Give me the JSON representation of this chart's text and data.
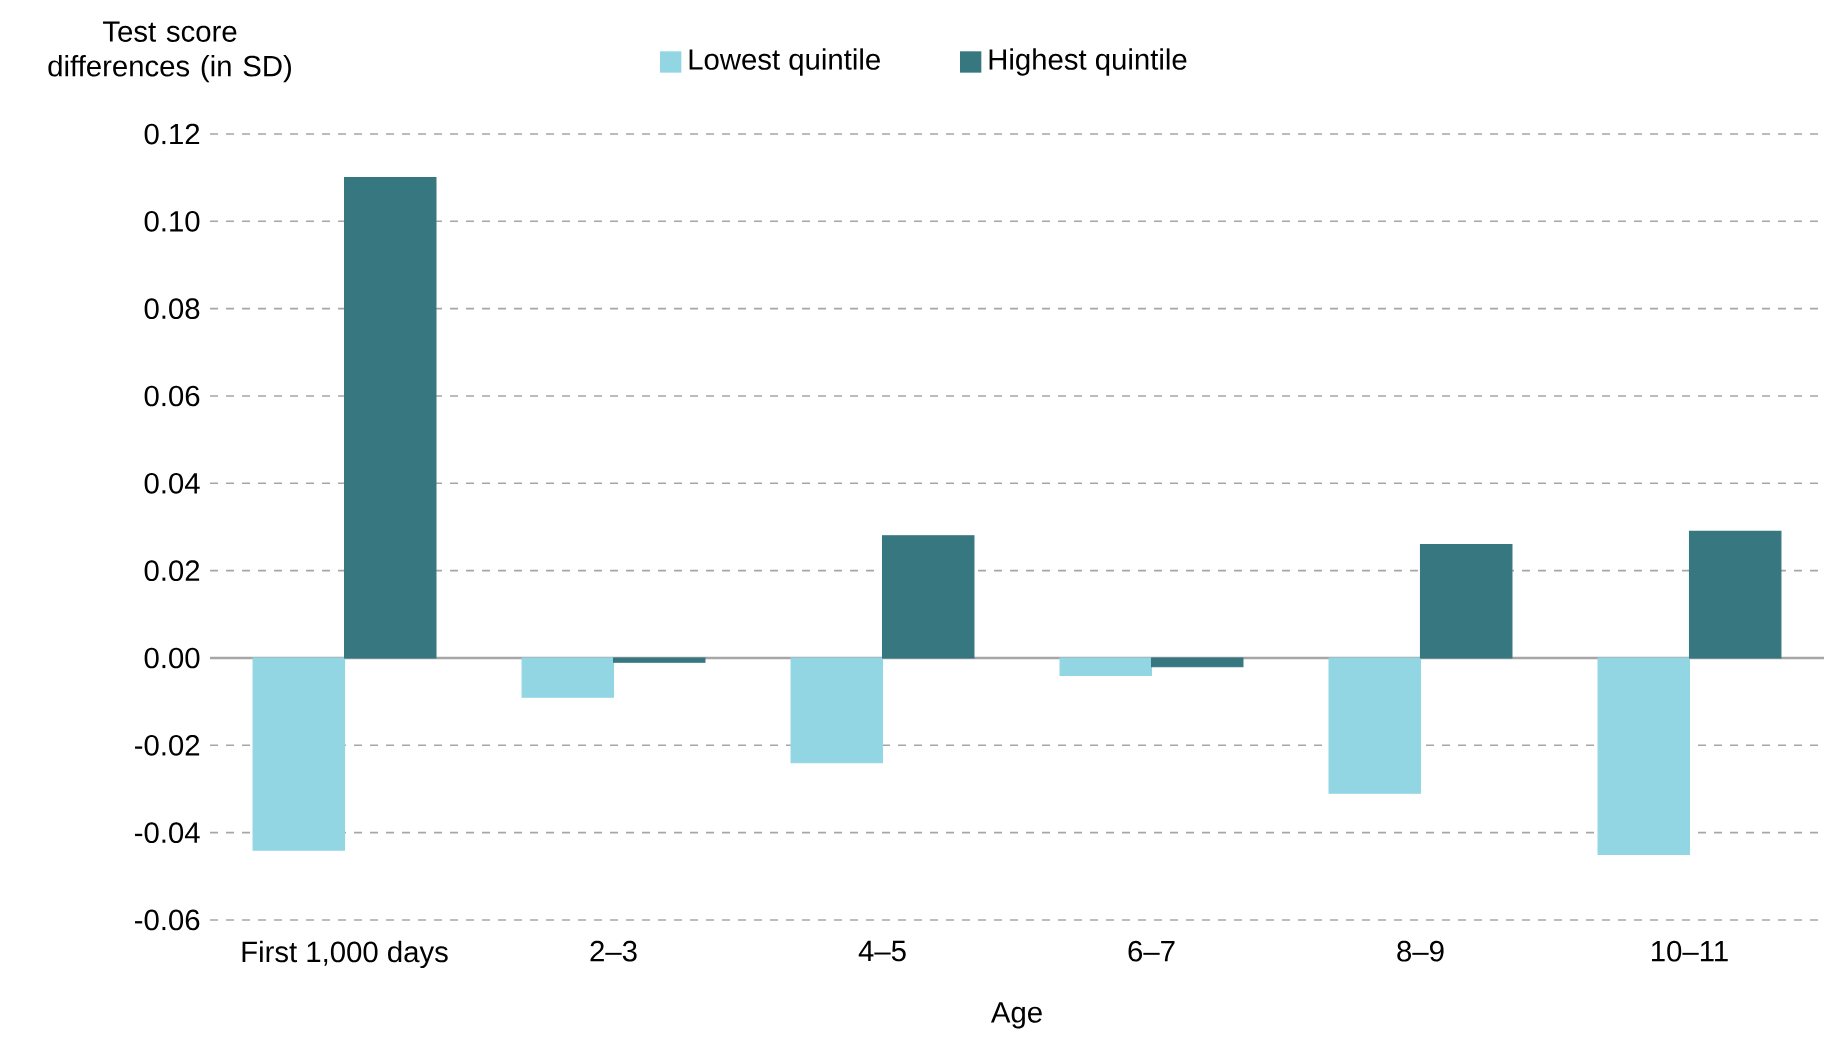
{
  "chart_data": {
    "type": "bar",
    "ylabel": "Test score differences (in SD)",
    "xlabel": "Age",
    "categories": [
      "First 1,000 days",
      "2–3",
      "4–5",
      "6–7",
      "8–9",
      "10–11"
    ],
    "series": [
      {
        "name": "Lowest quintile",
        "color": "#93d6e3",
        "values": [
          -0.044,
          -0.009,
          -0.024,
          -0.004,
          -0.031,
          -0.045
        ]
      },
      {
        "name": "Highest quintile",
        "color": "#367780",
        "values": [
          0.11,
          -0.001,
          0.028,
          -0.002,
          0.026,
          0.029
        ]
      }
    ],
    "ylim": [
      -0.06,
      0.12
    ],
    "yticks": [
      {
        "value": -0.06,
        "label": "-0.06"
      },
      {
        "value": -0.04,
        "label": "-0.04"
      },
      {
        "value": -0.02,
        "label": "-0.02"
      },
      {
        "value": 0,
        "label": "0.00"
      },
      {
        "value": 0.02,
        "label": "0.02"
      },
      {
        "value": 0.04,
        "label": "0.04"
      },
      {
        "value": 0.06,
        "label": "0.06"
      },
      {
        "value": 0.08,
        "label": "0.08"
      },
      {
        "value": 0.1,
        "label": "0.10"
      },
      {
        "value": 0.12,
        "label": "0.12"
      }
    ],
    "grid": "y",
    "legend": "top"
  }
}
